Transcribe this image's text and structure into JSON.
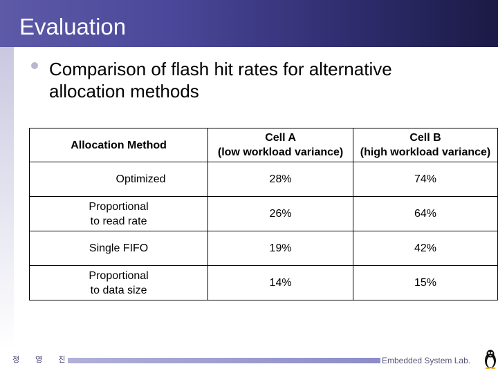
{
  "slide": {
    "title": "Evaluation",
    "bullet": "Comparison of flash hit rates for alternative allocation methods"
  },
  "table": {
    "headers": {
      "method": "Allocation Method",
      "cell_a_line1": "Cell A",
      "cell_a_line2": "(low workload variance)",
      "cell_b_line1": "Cell B",
      "cell_b_line2": "(high workload variance)"
    },
    "rows": [
      {
        "method_line1": "Optimized",
        "method_line2": "",
        "cell_a": "28%",
        "cell_b": "74%"
      },
      {
        "method_line1": "Proportional",
        "method_line2": "to read rate",
        "cell_a": "26%",
        "cell_b": "64%"
      },
      {
        "method_line1": "Single FIFO",
        "method_line2": "",
        "cell_a": "19%",
        "cell_b": "42%"
      },
      {
        "method_line1": "Proportional",
        "method_line2": "to data size",
        "cell_a": "14%",
        "cell_b": "15%"
      }
    ]
  },
  "footer": {
    "author": "정 영 진",
    "lab": "Embedded System Lab."
  },
  "icons": {
    "logo": "penguin-icon"
  },
  "colors": {
    "header_start": "#5d5aa8",
    "header_end": "#1b1a45",
    "footer_bar": "#8c8cc8"
  }
}
